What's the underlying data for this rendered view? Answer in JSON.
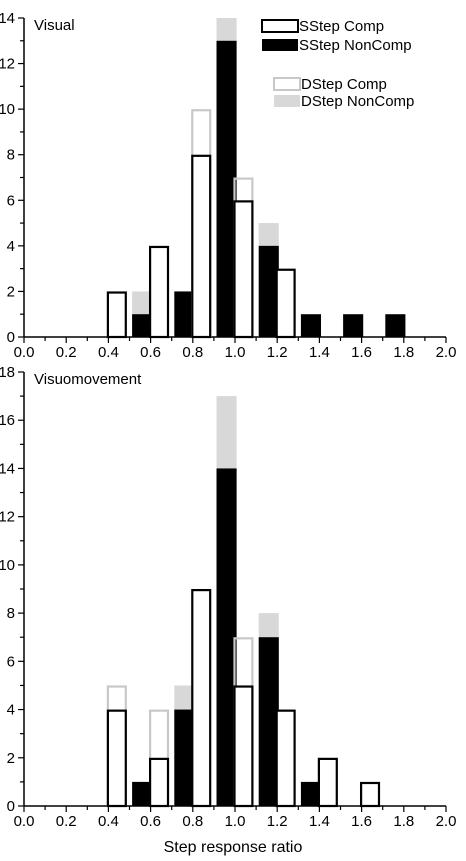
{
  "colors": {
    "sstep_comp": "#000000",
    "sstep_noncomp": "#000000",
    "dstep_comp": "#c8c8c8",
    "dstep_noncomp": "#d8d8d8"
  },
  "legend": [
    {
      "name": "SStep Comp",
      "style": "outline-dark"
    },
    {
      "name": "SStep NonComp",
      "style": "filled-dark"
    },
    {
      "name": "DStep Comp",
      "style": "outline-light"
    },
    {
      "name": "DStep NonComp",
      "style": "filled-light"
    }
  ],
  "xlabel": "Step response ratio",
  "chart_data": [
    {
      "type": "bar",
      "title": "Visual",
      "xlim": [
        0.0,
        2.0
      ],
      "ylim": [
        0,
        14
      ],
      "x_ticks": [
        "0.0",
        "0.2",
        "0.4",
        "0.6",
        "0.8",
        "1.0",
        "1.2",
        "1.4",
        "1.6",
        "1.8",
        "2.0"
      ],
      "y_ticks": [
        "0",
        "2",
        "4",
        "6",
        "8",
        "10",
        "12",
        "14"
      ],
      "bins": [
        0.5,
        0.7,
        0.9,
        1.1,
        1.3,
        1.5,
        1.7
      ],
      "series": [
        {
          "name": "SStep Comp",
          "values": [
            2,
            4,
            8,
            6,
            3,
            0,
            0
          ]
        },
        {
          "name": "SStep NonComp",
          "values": [
            1,
            2,
            13,
            4,
            1,
            1,
            1
          ]
        },
        {
          "name": "DStep Comp",
          "values": [
            0,
            0,
            10,
            7,
            0,
            0,
            0
          ]
        },
        {
          "name": "DStep NonComp",
          "values": [
            2,
            0,
            14,
            5,
            0,
            0,
            0
          ]
        }
      ]
    },
    {
      "type": "bar",
      "title": "Visuomovement",
      "xlim": [
        0.0,
        2.0
      ],
      "ylim": [
        0,
        18
      ],
      "x_ticks": [
        "0.0",
        "0.2",
        "0.4",
        "0.6",
        "0.8",
        "1.0",
        "1.2",
        "1.4",
        "1.6",
        "1.8",
        "2.0"
      ],
      "y_ticks": [
        "0",
        "2",
        "4",
        "6",
        "8",
        "10",
        "12",
        "14",
        "16",
        "18"
      ],
      "bins": [
        0.5,
        0.7,
        0.9,
        1.1,
        1.3,
        1.5,
        1.7
      ],
      "series": [
        {
          "name": "SStep Comp",
          "values": [
            4,
            2,
            9,
            5,
            4,
            2,
            1
          ]
        },
        {
          "name": "SStep NonComp",
          "values": [
            1,
            4,
            14,
            7,
            1,
            0,
            0
          ]
        },
        {
          "name": "DStep Comp",
          "values": [
            5,
            4,
            0,
            7,
            0,
            0,
            0
          ]
        },
        {
          "name": "DStep NonComp",
          "values": [
            0,
            5,
            17,
            8,
            0,
            0,
            0
          ]
        }
      ]
    }
  ]
}
